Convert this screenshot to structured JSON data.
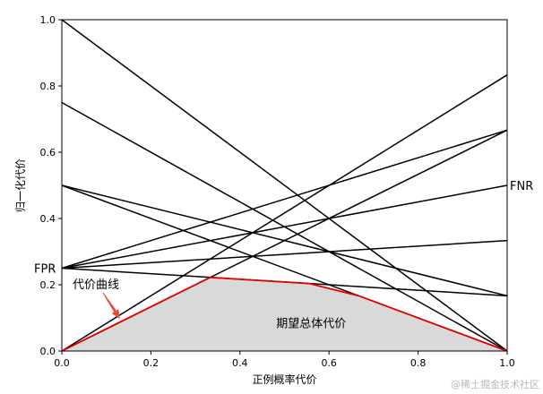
{
  "chart_data": {
    "type": "line",
    "title": "",
    "xlabel": "正例概率代价",
    "ylabel": "归一化代价",
    "xlim": [
      0.0,
      1.0
    ],
    "ylim": [
      0.0,
      1.0
    ],
    "xticks": [
      "0.0",
      "0.2",
      "0.4",
      "0.6",
      "0.8",
      "1.0"
    ],
    "yticks": [
      "0.0",
      "0.2",
      "0.4",
      "0.6",
      "0.8",
      "1.0"
    ],
    "grid": false,
    "legend": "none",
    "colors": {
      "lines": "#000000",
      "curve": "#e60000",
      "area": "#d9d9d9",
      "arrow": "#e84a3c"
    },
    "segments": [
      {
        "x": [
          0,
          1
        ],
        "y": [
          1.0,
          0.0
        ]
      },
      {
        "x": [
          0,
          1
        ],
        "y": [
          0.75,
          0.0
        ]
      },
      {
        "x": [
          0,
          1
        ],
        "y": [
          0.5,
          0.1667
        ]
      },
      {
        "x": [
          0,
          1
        ],
        "y": [
          0.5,
          0.0
        ]
      },
      {
        "x": [
          0,
          1
        ],
        "y": [
          0.25,
          0.1667
        ]
      },
      {
        "x": [
          0,
          1
        ],
        "y": [
          0.25,
          0.3333
        ]
      },
      {
        "x": [
          0,
          1
        ],
        "y": [
          0.25,
          0.5
        ]
      },
      {
        "x": [
          0,
          1
        ],
        "y": [
          0.25,
          0.6667
        ]
      },
      {
        "x": [
          0,
          1
        ],
        "y": [
          0.0,
          0.6667
        ]
      },
      {
        "x": [
          0,
          1
        ],
        "y": [
          0.0,
          0.8333
        ]
      }
    ],
    "cost_curve": {
      "name": "代价曲线",
      "x": [
        0.0,
        0.333,
        0.5556,
        0.6667,
        1.0
      ],
      "y": [
        0.0,
        0.2222,
        0.2037,
        0.1667,
        0.0
      ]
    },
    "annotations": {
      "fpr": "FPR",
      "fnr": "FNR",
      "area": "期望总体代价",
      "curve": "代价曲线"
    }
  },
  "watermark": "@稀土掘金技术社区"
}
